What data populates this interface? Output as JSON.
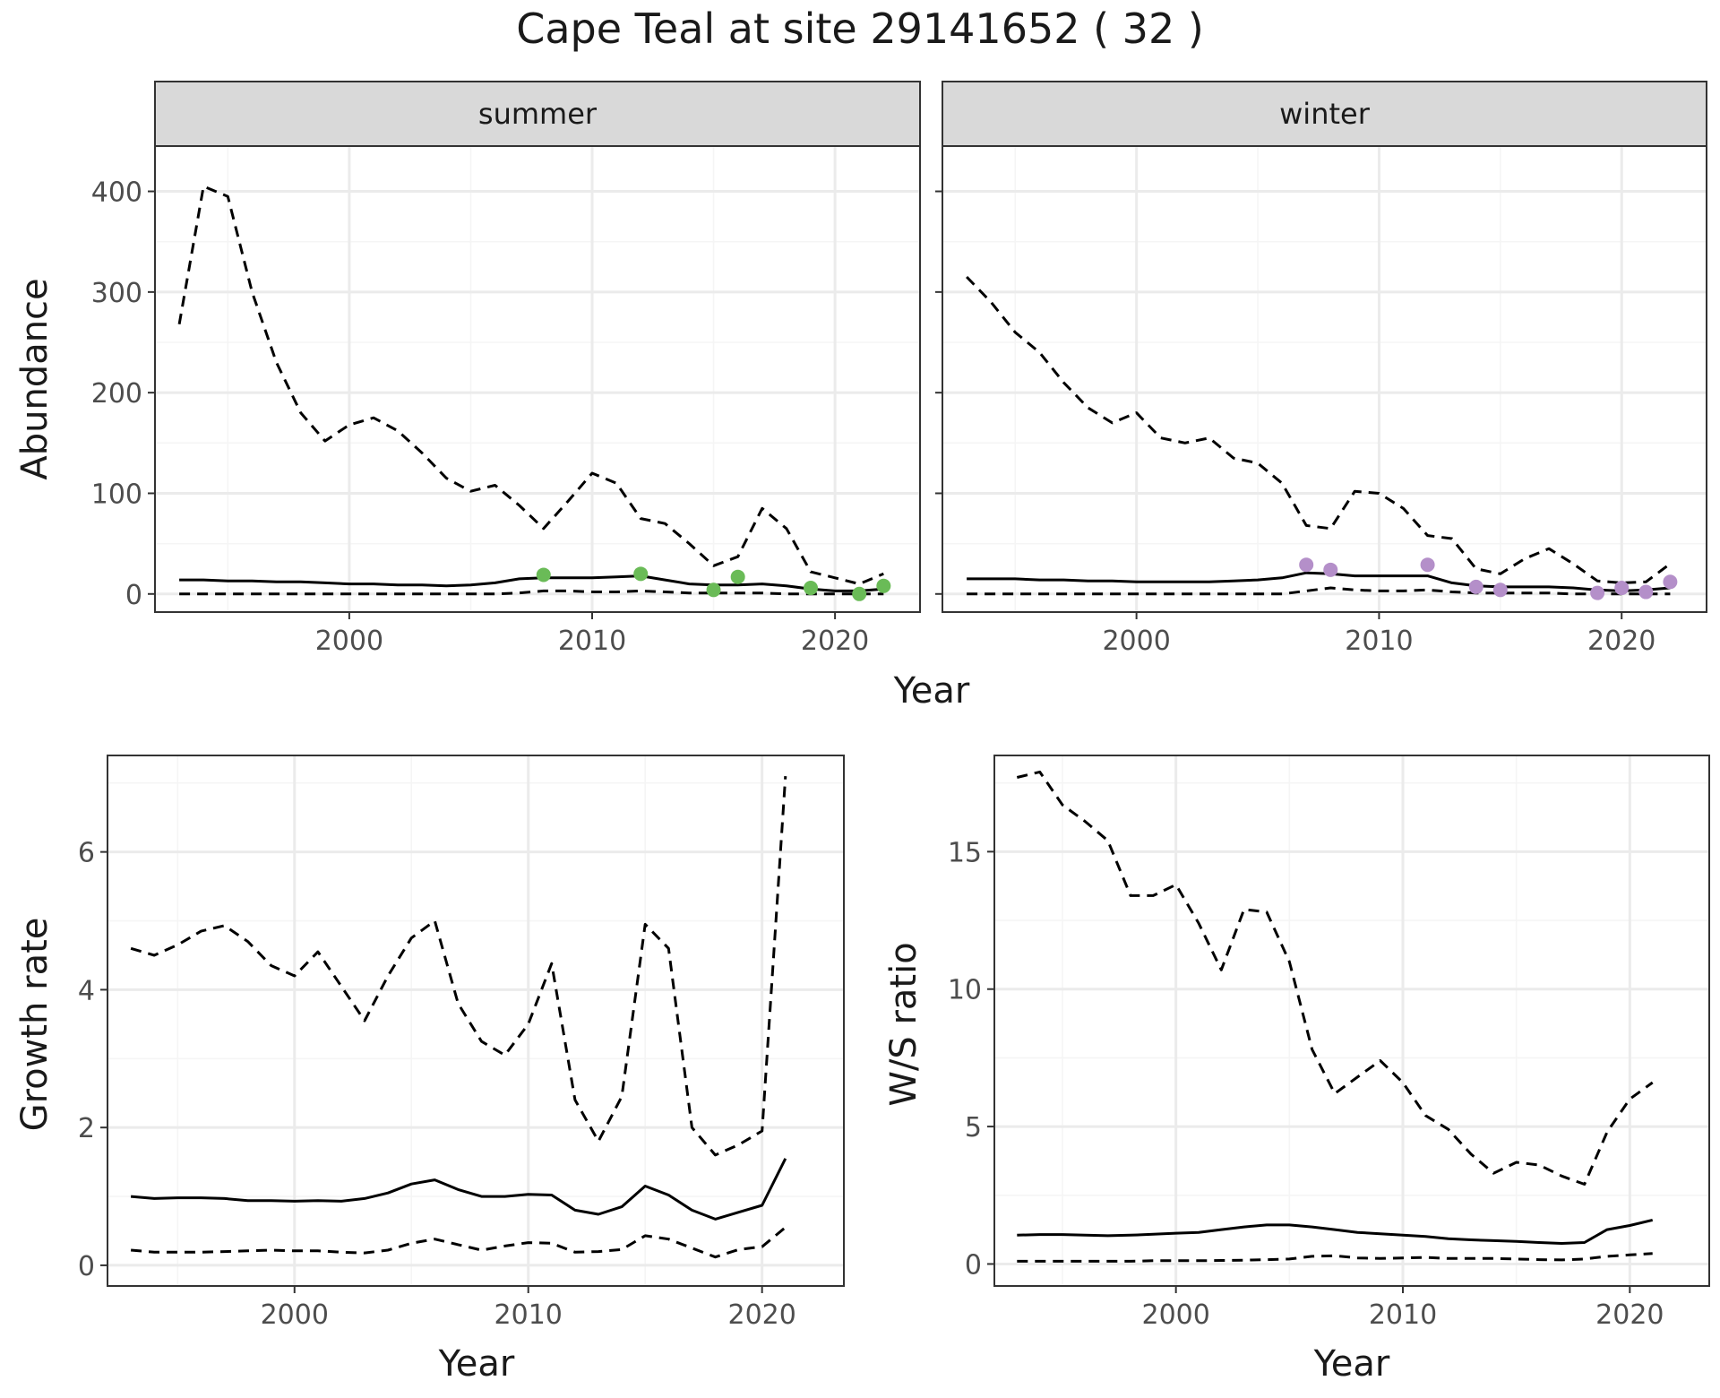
{
  "title": "Cape Teal at site 29141652 ( 32 )",
  "colors": {
    "summer_points": "#6abb57",
    "winter_points": "#b48fc9",
    "line": "#000000",
    "grid_major": "#ebebeb",
    "grid_minor": "#f5f5f5",
    "strip_fill": "#d9d9d9",
    "panel_border": "#333333"
  },
  "chart_data": [
    {
      "type": "line",
      "title": "Cape Teal at site 29141652 ( 32 )",
      "facets": [
        "summer",
        "winter"
      ],
      "xlabel": "Year",
      "ylabel": "Abundance",
      "xlim": [
        1992,
        2023.5
      ],
      "ylim": [
        -18,
        445
      ],
      "xticks": [
        2000,
        2010,
        2020
      ],
      "yticks": [
        0,
        100,
        200,
        300,
        400
      ],
      "grid": true,
      "panels": [
        {
          "facet": "summer",
          "x": [
            1993,
            1994,
            1995,
            1996,
            1997,
            1998,
            1999,
            2000,
            2001,
            2002,
            2003,
            2004,
            2005,
            2006,
            2007,
            2008,
            2009,
            2010,
            2011,
            2012,
            2013,
            2014,
            2015,
            2016,
            2017,
            2018,
            2019,
            2020,
            2021,
            2022
          ],
          "series": [
            {
              "style": "solid",
              "values": [
                14,
                14,
                13,
                13,
                12,
                12,
                11,
                10,
                10,
                9,
                9,
                8,
                9,
                11,
                15,
                16,
                16,
                16,
                17,
                18,
                14,
                10,
                9,
                9,
                10,
                8,
                5,
                3,
                3,
                5
              ]
            },
            {
              "style": "dashed",
              "values": [
                0,
                0,
                0,
                0,
                0,
                0,
                0,
                0,
                0,
                0,
                0,
                0,
                0,
                0,
                1,
                3,
                3,
                2,
                2,
                3,
                2,
                1,
                1,
                1,
                1,
                0,
                0,
                0,
                0,
                0
              ]
            },
            {
              "style": "dashed",
              "values": [
                268,
                405,
                395,
                300,
                230,
                180,
                152,
                168,
                175,
                162,
                140,
                115,
                102,
                108,
                88,
                65,
                92,
                120,
                110,
                75,
                70,
                50,
                28,
                37,
                85,
                65,
                22,
                16,
                10,
                20
              ]
            }
          ],
          "points": {
            "x": [
              2008,
              2012,
              2015,
              2016,
              2019,
              2021,
              2022
            ],
            "y": [
              19,
              20,
              4,
              17,
              6,
              0,
              8
            ]
          }
        },
        {
          "facet": "winter",
          "x": [
            1993,
            1994,
            1995,
            1996,
            1997,
            1998,
            1999,
            2000,
            2001,
            2002,
            2003,
            2004,
            2005,
            2006,
            2007,
            2008,
            2009,
            2010,
            2011,
            2012,
            2013,
            2014,
            2015,
            2016,
            2017,
            2018,
            2019,
            2020,
            2021,
            2022
          ],
          "series": [
            {
              "style": "solid",
              "values": [
                15,
                15,
                15,
                14,
                14,
                13,
                13,
                12,
                12,
                12,
                12,
                13,
                14,
                16,
                21,
                20,
                18,
                18,
                18,
                18,
                11,
                8,
                7,
                7,
                7,
                6,
                4,
                3,
                4,
                6
              ]
            },
            {
              "style": "dashed",
              "values": [
                0,
                0,
                0,
                0,
                0,
                0,
                0,
                0,
                0,
                0,
                0,
                0,
                0,
                0,
                3,
                6,
                4,
                3,
                3,
                4,
                2,
                1,
                1,
                1,
                1,
                0,
                0,
                0,
                0,
                0
              ]
            },
            {
              "style": "dashed",
              "values": [
                315,
                290,
                260,
                240,
                210,
                185,
                170,
                180,
                155,
                150,
                155,
                135,
                130,
                110,
                68,
                65,
                102,
                100,
                85,
                58,
                55,
                25,
                20,
                35,
                45,
                30,
                13,
                11,
                12,
                30
              ]
            }
          ],
          "points": {
            "x": [
              2007,
              2008,
              2012,
              2014,
              2015,
              2019,
              2020,
              2021,
              2022
            ],
            "y": [
              29,
              24,
              29,
              7,
              4,
              1,
              6,
              2,
              12
            ]
          }
        }
      ]
    },
    {
      "type": "line",
      "xlabel": "Year",
      "ylabel": "Growth rate",
      "xlim": [
        1992,
        2023.5
      ],
      "ylim": [
        -0.3,
        7.4
      ],
      "xticks": [
        2000,
        2010,
        2020
      ],
      "yticks": [
        0,
        2,
        4,
        6
      ],
      "grid": true,
      "x": [
        1993,
        1994,
        1995,
        1996,
        1997,
        1998,
        1999,
        2000,
        2001,
        2002,
        2003,
        2004,
        2005,
        2006,
        2007,
        2008,
        2009,
        2010,
        2011,
        2012,
        2013,
        2014,
        2015,
        2016,
        2017,
        2018,
        2019,
        2020,
        2021
      ],
      "series": [
        {
          "style": "solid",
          "values": [
            1.0,
            0.97,
            0.98,
            0.98,
            0.97,
            0.94,
            0.94,
            0.93,
            0.94,
            0.93,
            0.97,
            1.05,
            1.18,
            1.24,
            1.1,
            1.0,
            1.0,
            1.03,
            1.02,
            0.8,
            0.74,
            0.85,
            1.15,
            1.02,
            0.8,
            0.67,
            0.77,
            0.87,
            1.55
          ]
        },
        {
          "style": "dashed",
          "values": [
            0.22,
            0.19,
            0.19,
            0.19,
            0.2,
            0.21,
            0.22,
            0.21,
            0.21,
            0.19,
            0.18,
            0.22,
            0.32,
            0.38,
            0.3,
            0.22,
            0.28,
            0.33,
            0.32,
            0.19,
            0.2,
            0.23,
            0.43,
            0.38,
            0.25,
            0.12,
            0.23,
            0.27,
            0.55
          ]
        },
        {
          "style": "dashed",
          "values": [
            4.6,
            4.5,
            4.65,
            4.85,
            4.93,
            4.7,
            4.35,
            4.2,
            4.55,
            4.05,
            3.55,
            4.2,
            4.75,
            5.0,
            3.8,
            3.25,
            3.05,
            3.5,
            4.38,
            2.4,
            1.8,
            2.45,
            4.95,
            4.6,
            2.0,
            1.6,
            1.75,
            1.95,
            7.1
          ]
        }
      ]
    },
    {
      "type": "line",
      "xlabel": "Year",
      "ylabel": "W/S ratio",
      "xlim": [
        1992,
        2023.5
      ],
      "ylim": [
        -0.8,
        18.5
      ],
      "xticks": [
        2000,
        2010,
        2020
      ],
      "yticks": [
        0,
        5,
        10,
        15
      ],
      "grid": true,
      "x": [
        1993,
        1994,
        1995,
        1996,
        1997,
        1998,
        1999,
        2000,
        2001,
        2002,
        2003,
        2004,
        2005,
        2006,
        2007,
        2008,
        2009,
        2010,
        2011,
        2012,
        2013,
        2014,
        2015,
        2016,
        2017,
        2018,
        2019,
        2020,
        2021
      ],
      "series": [
        {
          "style": "solid",
          "values": [
            1.05,
            1.07,
            1.07,
            1.05,
            1.03,
            1.05,
            1.08,
            1.12,
            1.15,
            1.25,
            1.35,
            1.42,
            1.42,
            1.35,
            1.25,
            1.15,
            1.1,
            1.05,
            1.0,
            0.92,
            0.88,
            0.85,
            0.82,
            0.78,
            0.75,
            0.78,
            1.25,
            1.4,
            1.6
          ]
        },
        {
          "style": "dashed",
          "values": [
            0.1,
            0.1,
            0.1,
            0.1,
            0.1,
            0.1,
            0.12,
            0.12,
            0.12,
            0.13,
            0.14,
            0.16,
            0.18,
            0.28,
            0.3,
            0.22,
            0.2,
            0.22,
            0.24,
            0.2,
            0.2,
            0.2,
            0.18,
            0.16,
            0.15,
            0.18,
            0.28,
            0.33,
            0.38
          ]
        },
        {
          "style": "dashed",
          "values": [
            17.7,
            17.9,
            16.7,
            16.1,
            15.4,
            13.4,
            13.4,
            13.8,
            12.4,
            10.7,
            12.9,
            12.8,
            11.0,
            7.8,
            6.2,
            6.8,
            7.4,
            6.6,
            5.4,
            4.9,
            4.0,
            3.3,
            3.7,
            3.6,
            3.2,
            2.9,
            4.8,
            6.0,
            6.6
          ]
        }
      ]
    }
  ]
}
